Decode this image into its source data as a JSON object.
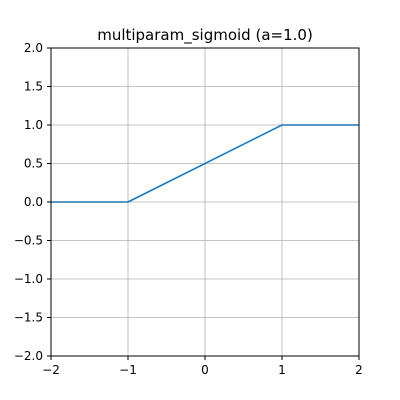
{
  "chart_data": {
    "type": "line",
    "title": "multiparam_sigmoid (a=1.0)",
    "xlabel": "",
    "ylabel": "",
    "xlim": [
      -2,
      2
    ],
    "ylim": [
      -2,
      2
    ],
    "xticks": [
      -2,
      -1,
      0,
      1,
      2
    ],
    "xtick_labels": [
      "−2",
      "−1",
      "0",
      "1",
      "2"
    ],
    "yticks": [
      -2,
      -1.5,
      -1,
      -0.5,
      0,
      0.5,
      1,
      1.5,
      2
    ],
    "ytick_labels": [
      "−2.0",
      "−1.5",
      "−1.0",
      "−0.5",
      "0.0",
      "0.5",
      "1.0",
      "1.5",
      "2.0"
    ],
    "grid": true,
    "series": [
      {
        "color": "#1f77b4",
        "x": [
          -2,
          -1,
          1,
          2
        ],
        "y": [
          0,
          0,
          1,
          1
        ]
      }
    ]
  }
}
